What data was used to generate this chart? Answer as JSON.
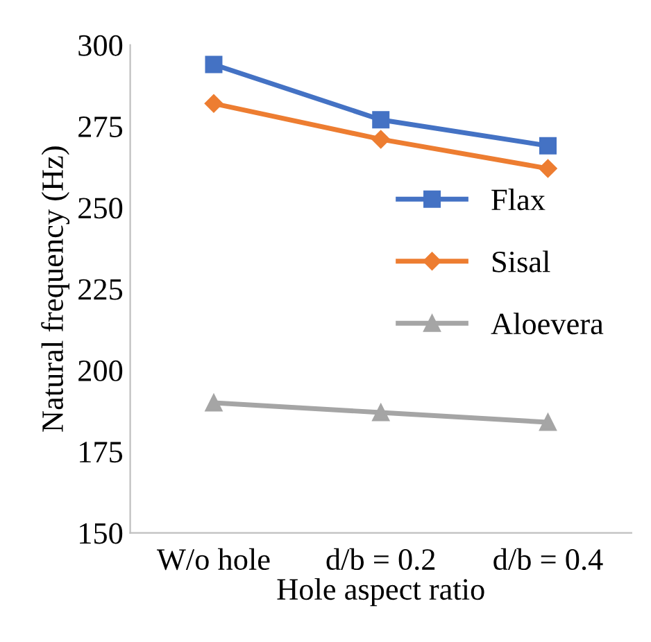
{
  "chart_data": {
    "type": "line",
    "xlabel": "Hole aspect ratio",
    "ylabel": "Natural frequency (Hz)",
    "categories": [
      "W/o hole",
      "d/b = 0.2",
      "d/b = 0.4"
    ],
    "series": [
      {
        "name": "Flax",
        "color": "#4472c4",
        "values": [
          294,
          277,
          269
        ],
        "marker": "square"
      },
      {
        "name": "Sisal",
        "color": "#ed7d31",
        "values": [
          282,
          271,
          262
        ],
        "marker": "diamond"
      },
      {
        "name": "Aloevera",
        "color": "#a5a5a5",
        "values": [
          190,
          187,
          184
        ],
        "marker": "triangle"
      }
    ],
    "ylim": [
      150,
      300
    ],
    "yticks": [
      150,
      175,
      200,
      225,
      250,
      275,
      300
    ],
    "grid": false,
    "legend": "right"
  }
}
